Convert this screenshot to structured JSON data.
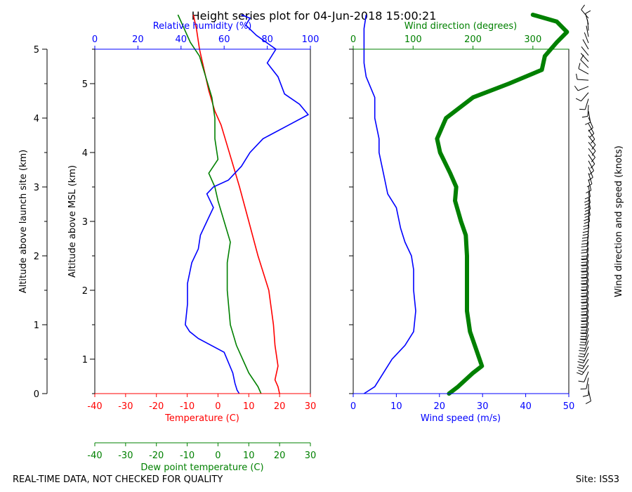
{
  "title": "Height series plot for 04-Jun-2018 15:00:21",
  "footer": {
    "left": "REAL-TIME DATA, NOT CHECKED FOR QUALITY",
    "right": "Site: ISS3"
  },
  "colors": {
    "temperature": "#ff0000",
    "dewpoint": "#008000",
    "rh": "#0000ff",
    "wind_speed": "#0000ff",
    "wind_dir": "#008000",
    "axis": "#000000"
  },
  "chart_data": [
    {
      "type": "line",
      "panel": "thermo",
      "axes": {
        "y_site": {
          "label": "Altitude above launch site (km)",
          "range": [
            0,
            5
          ],
          "ticks": [
            0,
            1,
            2,
            3,
            4,
            5
          ]
        },
        "y_msl": {
          "label": "Altitude above MSL (km)",
          "range": [
            0.5,
            5.5
          ],
          "ticks": [
            1,
            2,
            3,
            4,
            5
          ]
        },
        "x_temp": {
          "label": "Temperature (C)",
          "range": [
            -40,
            30
          ],
          "ticks": [
            -40,
            -30,
            -20,
            -10,
            0,
            10,
            20,
            30
          ]
        },
        "x_dewpoint": {
          "label": "Dew point temperature (C)",
          "range": [
            -40,
            30
          ],
          "ticks": [
            -40,
            -30,
            -20,
            -10,
            0,
            10,
            20,
            30
          ]
        },
        "x_rh": {
          "label": "Relative humidity (%)",
          "range": [
            0,
            100
          ],
          "ticks": [
            0,
            20,
            40,
            60,
            80,
            100
          ]
        }
      },
      "series": [
        {
          "name": "Temperature (C)",
          "axis": "x_temp",
          "points": [
            [
              20,
              0
            ],
            [
              19.5,
              0.1
            ],
            [
              18.5,
              0.2
            ],
            [
              19.5,
              0.4
            ],
            [
              18.5,
              0.7
            ],
            [
              18,
              1.0
            ],
            [
              16.5,
              1.5
            ],
            [
              13,
              2.0
            ],
            [
              10,
              2.5
            ],
            [
              7,
              3.0
            ],
            [
              5,
              3.3
            ],
            [
              3,
              3.6
            ],
            [
              1,
              3.9
            ],
            [
              -1,
              4.1
            ],
            [
              -3,
              4.4
            ],
            [
              -5,
              4.8
            ],
            [
              -6,
              5.0
            ],
            [
              -7,
              5.3
            ],
            [
              -8,
              5.5
            ]
          ]
        },
        {
          "name": "Dew point temperature (C)",
          "axis": "x_dewpoint",
          "points": [
            [
              14,
              0
            ],
            [
              13,
              0.1
            ],
            [
              10,
              0.3
            ],
            [
              8,
              0.5
            ],
            [
              6,
              0.7
            ],
            [
              4,
              1.0
            ],
            [
              3,
              1.5
            ],
            [
              3,
              1.9
            ],
            [
              4,
              2.2
            ],
            [
              2,
              2.5
            ],
            [
              0,
              2.8
            ],
            [
              -1,
              3.0
            ],
            [
              -3,
              3.2
            ],
            [
              0,
              3.4
            ],
            [
              -1,
              3.7
            ],
            [
              -1,
              4.0
            ],
            [
              -2,
              4.3
            ],
            [
              -4,
              4.6
            ],
            [
              -6,
              4.9
            ],
            [
              -9,
              5.1
            ],
            [
              -11,
              5.3
            ],
            [
              -13,
              5.5
            ]
          ]
        },
        {
          "name": "Relative humidity (%)",
          "axis": "x_rh",
          "points": [
            [
              67,
              0
            ],
            [
              66,
              0.05
            ],
            [
              65,
              0.15
            ],
            [
              64,
              0.3
            ],
            [
              60,
              0.6
            ],
            [
              48,
              0.8
            ],
            [
              44,
              0.9
            ],
            [
              42,
              1.0
            ],
            [
              43,
              1.3
            ],
            [
              43,
              1.6
            ],
            [
              45,
              1.9
            ],
            [
              48,
              2.1
            ],
            [
              49,
              2.3
            ],
            [
              52,
              2.5
            ],
            [
              55,
              2.7
            ],
            [
              52,
              2.9
            ],
            [
              55,
              3.0
            ],
            [
              62,
              3.1
            ],
            [
              68,
              3.3
            ],
            [
              72,
              3.5
            ],
            [
              78,
              3.7
            ],
            [
              90,
              3.9
            ],
            [
              99,
              4.05
            ],
            [
              95,
              4.2
            ],
            [
              88,
              4.35
            ],
            [
              85,
              4.6
            ],
            [
              80,
              4.8
            ],
            [
              84,
              5.0
            ],
            [
              75,
              5.2
            ],
            [
              70,
              5.35
            ],
            [
              72,
              5.45
            ],
            [
              68,
              5.5
            ]
          ]
        }
      ]
    },
    {
      "type": "line",
      "panel": "wind",
      "axes": {
        "x_speed": {
          "label": "Wind speed (m/s)",
          "range": [
            0,
            50
          ],
          "ticks": [
            0,
            10,
            20,
            30,
            40,
            50
          ]
        },
        "x_dir": {
          "label": "Wind direction (degrees)",
          "range": [
            0,
            360
          ],
          "ticks": [
            0,
            100,
            200,
            300
          ]
        },
        "y": {
          "range": [
            0,
            5
          ],
          "ticks": [
            0,
            1,
            2,
            3,
            4,
            5
          ]
        },
        "barbs": {
          "label": "Wind direction and speed (knots)"
        }
      },
      "series": [
        {
          "name": "Wind speed (m/s)",
          "axis": "x_speed",
          "points": [
            [
              2.5,
              0
            ],
            [
              5,
              0.1
            ],
            [
              7,
              0.3
            ],
            [
              9,
              0.5
            ],
            [
              12,
              0.7
            ],
            [
              14,
              0.9
            ],
            [
              14.5,
              1.2
            ],
            [
              14,
              1.5
            ],
            [
              14,
              1.8
            ],
            [
              13.5,
              2.0
            ],
            [
              12,
              2.2
            ],
            [
              11,
              2.4
            ],
            [
              10,
              2.7
            ],
            [
              8,
              2.9
            ],
            [
              7,
              3.2
            ],
            [
              6,
              3.5
            ],
            [
              6,
              3.7
            ],
            [
              5,
              4.0
            ],
            [
              5,
              4.3
            ],
            [
              3,
              4.6
            ],
            [
              2.5,
              4.8
            ],
            [
              2.5,
              5.0
            ],
            [
              2.5,
              5.3
            ],
            [
              3,
              5.5
            ]
          ]
        },
        {
          "name": "Wind direction (degrees)",
          "axis": "x_dir",
          "points": [
            [
              160,
              0
            ],
            [
              175,
              0.1
            ],
            [
              200,
              0.3
            ],
            [
              215,
              0.4
            ],
            [
              207,
              0.6
            ],
            [
              195,
              0.9
            ],
            [
              190,
              1.2
            ],
            [
              190,
              1.5
            ],
            [
              190,
              2.0
            ],
            [
              188,
              2.3
            ],
            [
              180,
              2.5
            ],
            [
              170,
              2.8
            ],
            [
              172,
              3.0
            ],
            [
              162,
              3.2
            ],
            [
              145,
              3.5
            ],
            [
              140,
              3.7
            ],
            [
              155,
              4.0
            ],
            [
              200,
              4.3
            ],
            [
              260,
              4.5
            ],
            [
              315,
              4.7
            ],
            [
              320,
              4.9
            ],
            [
              340,
              5.1
            ],
            [
              357,
              5.25
            ],
            [
              340,
              5.4
            ],
            [
              300,
              5.5
            ]
          ]
        }
      ]
    }
  ]
}
